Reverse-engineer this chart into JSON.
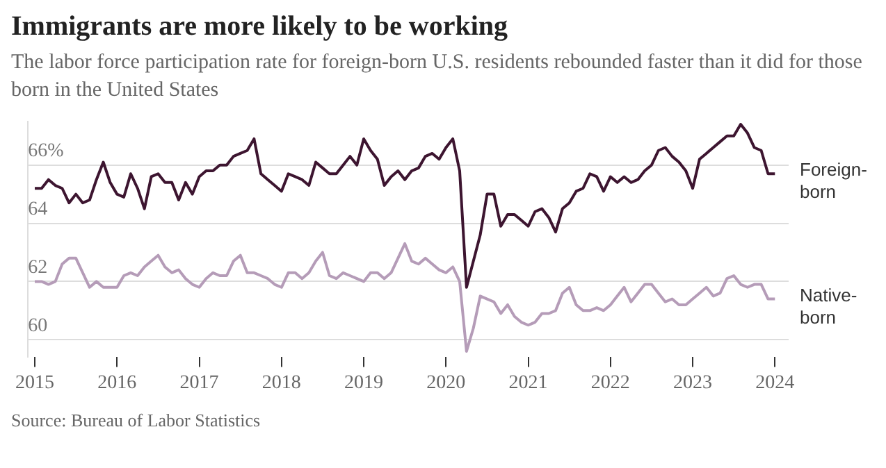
{
  "chart_data": {
    "type": "line",
    "title": "Immigrants are more likely to be working",
    "subtitle": "The labor force participation rate for foreign-born U.S. residents rebounded faster than it did for those born in the United States",
    "annotations": [
      "Source: Bureau of Labor Statistics"
    ],
    "x": [
      "2015-01",
      "2015-02",
      "2015-03",
      "2015-04",
      "2015-05",
      "2015-06",
      "2015-07",
      "2015-08",
      "2015-09",
      "2015-10",
      "2015-11",
      "2015-12",
      "2016-01",
      "2016-02",
      "2016-03",
      "2016-04",
      "2016-05",
      "2016-06",
      "2016-07",
      "2016-08",
      "2016-09",
      "2016-10",
      "2016-11",
      "2016-12",
      "2017-01",
      "2017-02",
      "2017-03",
      "2017-04",
      "2017-05",
      "2017-06",
      "2017-07",
      "2017-08",
      "2017-09",
      "2017-10",
      "2017-11",
      "2017-12",
      "2018-01",
      "2018-02",
      "2018-03",
      "2018-04",
      "2018-05",
      "2018-06",
      "2018-07",
      "2018-08",
      "2018-09",
      "2018-10",
      "2018-11",
      "2018-12",
      "2019-01",
      "2019-02",
      "2019-03",
      "2019-04",
      "2019-05",
      "2019-06",
      "2019-07",
      "2019-08",
      "2019-09",
      "2019-10",
      "2019-11",
      "2019-12",
      "2020-01",
      "2020-02",
      "2020-03",
      "2020-04",
      "2020-05",
      "2020-06",
      "2020-07",
      "2020-08",
      "2020-09",
      "2020-10",
      "2020-11",
      "2020-12",
      "2021-01",
      "2021-02",
      "2021-03",
      "2021-04",
      "2021-05",
      "2021-06",
      "2021-07",
      "2021-08",
      "2021-09",
      "2021-10",
      "2021-11",
      "2021-12",
      "2022-01",
      "2022-02",
      "2022-03",
      "2022-04",
      "2022-05",
      "2022-06",
      "2022-07",
      "2022-08",
      "2022-09",
      "2022-10",
      "2022-11",
      "2022-12",
      "2023-01",
      "2023-02",
      "2023-03",
      "2023-04",
      "2023-05",
      "2023-06",
      "2023-07",
      "2023-08",
      "2023-09",
      "2023-10",
      "2023-11",
      "2023-12",
      "2024-01"
    ],
    "series": [
      {
        "name": "Foreign-born",
        "color": "#3d1530",
        "values": [
          65.2,
          65.2,
          65.5,
          65.3,
          65.2,
          64.7,
          65.0,
          64.7,
          64.8,
          65.5,
          66.1,
          65.4,
          65.0,
          64.9,
          65.7,
          65.2,
          64.5,
          65.6,
          65.7,
          65.4,
          65.4,
          64.8,
          65.4,
          65.0,
          65.6,
          65.8,
          65.8,
          66.0,
          66.0,
          66.3,
          66.4,
          66.5,
          66.9,
          65.7,
          65.5,
          65.3,
          65.1,
          65.7,
          65.6,
          65.5,
          65.3,
          66.1,
          65.9,
          65.7,
          65.7,
          66.0,
          66.3,
          66.0,
          66.9,
          66.5,
          66.2,
          65.3,
          65.6,
          65.8,
          65.5,
          65.8,
          65.9,
          66.3,
          66.4,
          66.2,
          66.6,
          66.9,
          65.8,
          61.8,
          62.7,
          63.6,
          65.0,
          65.0,
          63.9,
          64.3,
          64.3,
          64.1,
          63.9,
          64.4,
          64.5,
          64.2,
          63.7,
          64.5,
          64.7,
          65.1,
          65.2,
          65.7,
          65.6,
          65.1,
          65.6,
          65.4,
          65.6,
          65.4,
          65.5,
          65.8,
          66.0,
          66.5,
          66.6,
          66.3,
          66.1,
          65.8,
          65.2,
          66.2,
          66.4,
          66.6,
          66.8,
          67.0,
          67.0,
          67.4,
          67.1,
          66.6,
          66.5,
          65.7,
          65.7
        ]
      },
      {
        "name": "Native-born",
        "color": "#b59cb8",
        "values": [
          62.0,
          62.0,
          61.9,
          62.0,
          62.6,
          62.8,
          62.8,
          62.3,
          61.8,
          62.0,
          61.8,
          61.8,
          61.8,
          62.2,
          62.3,
          62.2,
          62.5,
          62.7,
          62.9,
          62.5,
          62.3,
          62.4,
          62.1,
          61.9,
          61.8,
          62.1,
          62.3,
          62.2,
          62.2,
          62.7,
          62.9,
          62.3,
          62.3,
          62.2,
          62.1,
          61.9,
          61.8,
          62.3,
          62.3,
          62.1,
          62.3,
          62.7,
          63.0,
          62.2,
          62.1,
          62.3,
          62.2,
          62.1,
          62.0,
          62.3,
          62.3,
          62.1,
          62.3,
          62.8,
          63.3,
          62.7,
          62.6,
          62.8,
          62.6,
          62.4,
          62.3,
          62.5,
          62.0,
          59.6,
          60.4,
          61.5,
          61.4,
          61.3,
          60.9,
          61.2,
          60.8,
          60.6,
          60.5,
          60.6,
          60.9,
          60.9,
          61.0,
          61.6,
          61.8,
          61.2,
          61.0,
          61.0,
          61.1,
          61.0,
          61.2,
          61.5,
          61.8,
          61.3,
          61.6,
          61.9,
          61.9,
          61.6,
          61.3,
          61.4,
          61.2,
          61.2,
          61.4,
          61.6,
          61.8,
          61.5,
          61.6,
          62.1,
          62.2,
          61.9,
          61.8,
          61.9,
          61.9,
          61.4,
          61.4
        ]
      }
    ],
    "xlim": [
      "2014-12",
      "2024-03"
    ],
    "xticks": [
      "2015",
      "2016",
      "2017",
      "2018",
      "2019",
      "2020",
      "2021",
      "2022",
      "2023",
      "2024"
    ],
    "ylim": [
      59.4,
      67.5
    ],
    "yticks": [
      {
        "value": 66,
        "label": "66%"
      },
      64,
      62,
      60
    ],
    "grid": "y",
    "legend": false,
    "marker": "none",
    "line_style": "solid"
  }
}
